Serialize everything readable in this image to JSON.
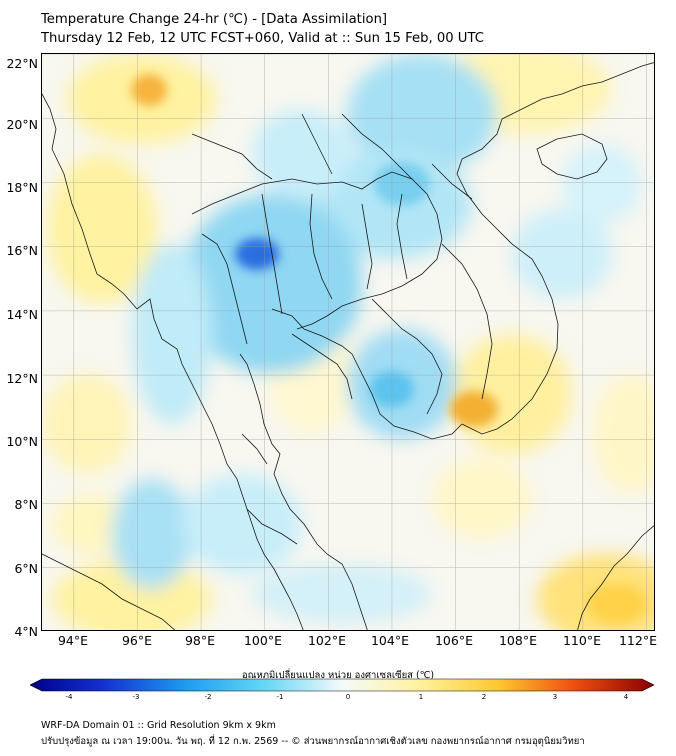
{
  "title": {
    "line1": "Temperature Change 24-hr (℃) - [Data Assimilation]",
    "line2": "Thursday 12 Feb, 12 UTC FCST+060, Valid at :: Sun 15 Feb, 00 UTC"
  },
  "map": {
    "lat_labels": [
      "22°N",
      "20°N",
      "18°N",
      "16°N",
      "14°N",
      "12°N",
      "10°N",
      "8°N",
      "6°N",
      "4°N"
    ],
    "lon_labels": [
      "94°E",
      "96°E",
      "98°E",
      "100°E",
      "102°E",
      "104°E",
      "106°E",
      "108°E",
      "110°E",
      "112°E"
    ],
    "lat_range": [
      4,
      22
    ],
    "lon_range": [
      93,
      112.3
    ],
    "color_min_hex": "#00008b",
    "color_max_hex": "#8b0000"
  },
  "colorbar": {
    "title": "อุณหภูมิเปลี่ยนแปลง หน่วย องศาเซลเซียส (℃)",
    "ticks": [
      "-4",
      "-3",
      "-2",
      "-1",
      "0",
      "1",
      "2",
      "3",
      "4"
    ],
    "range": [
      -4,
      4
    ]
  },
  "footer": {
    "line1": "WRF-DA Domain 01 :: Grid Resolution 9km x 9km",
    "line2": "ปรับปรุงข้อมูล ณ เวลา 19:00น. วัน พฤ. ที่ 12 ก.พ. 2569 -- © ส่วนพยากรณ์อากาศเชิงตัวเลข กองพยากรณ์อากาศ กรมอุตุนิยมวิทยา"
  }
}
